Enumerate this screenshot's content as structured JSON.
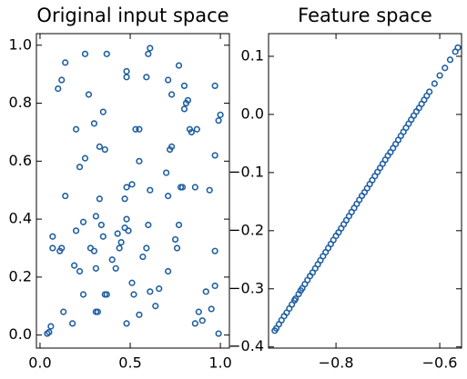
{
  "chart_data": [
    {
      "type": "scatter",
      "title": "Original input space",
      "color": "#1f5fa0",
      "x": [
        0.04,
        0.05,
        0.06,
        0.07,
        0.07,
        0.11,
        0.12,
        0.1,
        0.12,
        0.14,
        0.13,
        0.18,
        0.19,
        0.22,
        0.24,
        0.24,
        0.22,
        0.25,
        0.2,
        0.25,
        0.27,
        0.28,
        0.3,
        0.31,
        0.31,
        0.3,
        0.33,
        0.31,
        0.32,
        0.36,
        0.35,
        0.37,
        0.37,
        0.34,
        0.4,
        0.42,
        0.44,
        0.45,
        0.43,
        0.47,
        0.48,
        0.49,
        0.47,
        0.48,
        0.51,
        0.53,
        0.55,
        0.55,
        0.57,
        0.6,
        0.59,
        0.61,
        0.64,
        0.66,
        0.7,
        0.71,
        0.72,
        0.73,
        0.71,
        0.75,
        0.78,
        0.79,
        0.8,
        0.81,
        0.82,
        0.8,
        0.83,
        0.86,
        0.87,
        0.88,
        0.86,
        0.9,
        0.92,
        0.94,
        0.97,
        0.97,
        0.99,
        1.0,
        0.97,
        0.97,
        0.99,
        0.95,
        0.6,
        0.61,
        0.48,
        0.48,
        0.59,
        0.71,
        0.73,
        0.77,
        0.55,
        0.48,
        0.52,
        0.51,
        0.61,
        0.76,
        0.77,
        0.33,
        0.35,
        0.2,
        0.14,
        0.36,
        0.84
      ],
      "values": [
        0.005,
        0.01,
        0.03,
        0.34,
        0.3,
        0.29,
        0.3,
        0.85,
        0.88,
        0.94,
        0.08,
        0.04,
        0.24,
        0.22,
        0.14,
        0.39,
        0.58,
        0.61,
        0.71,
        0.97,
        0.83,
        0.3,
        0.29,
        0.41,
        0.23,
        0.73,
        0.65,
        0.08,
        0.08,
        0.64,
        0.77,
        0.97,
        0.14,
        0.38,
        0.26,
        0.23,
        0.3,
        0.32,
        0.35,
        0.37,
        0.4,
        0.36,
        0.47,
        0.51,
        0.52,
        0.71,
        0.71,
        0.6,
        0.27,
        0.38,
        0.3,
        0.15,
        0.1,
        0.16,
        0.56,
        0.48,
        0.64,
        0.65,
        0.22,
        0.33,
        0.51,
        0.51,
        0.86,
        0.8,
        0.81,
        0.78,
        0.71,
        0.51,
        0.71,
        0.08,
        0.04,
        0.05,
        0.15,
        0.5,
        0.62,
        0.86,
        0.74,
        0.76,
        0.29,
        0.17,
        0.005,
        0.09,
        0.97,
        0.99,
        0.91,
        0.89,
        0.89,
        0.88,
        0.83,
        0.93,
        0.07,
        0.04,
        0.14,
        0.18,
        0.5,
        0.3,
        0.38,
        0.47,
        0.34,
        0.36,
        0.48,
        0.14,
        0.7
      ],
      "xlim": [
        -0.02,
        1.05
      ],
      "ylim": [
        -0.045,
        1.04
      ],
      "xticks": [
        {
          "value": 0,
          "label": "0.0"
        },
        0.5,
        {
          "value": 1,
          "label": "1.0"
        }
      ],
      "yticks": [
        {
          "value": 0,
          "label": "0.0"
        },
        0.2,
        0.4,
        0.6,
        0.8,
        {
          "value": 1,
          "label": "1.0"
        }
      ]
    },
    {
      "type": "scatter",
      "title": "Feature space",
      "color": "#1f5fa0",
      "x": [
        -0.918,
        -0.915,
        -0.91,
        -0.905,
        -0.9,
        -0.895,
        -0.89,
        -0.885,
        -0.88,
        -0.878,
        -0.872,
        -0.868,
        -0.865,
        -0.86,
        -0.855,
        -0.85,
        -0.845,
        -0.84,
        -0.835,
        -0.83,
        -0.825,
        -0.82,
        -0.815,
        -0.81,
        -0.805,
        -0.8,
        -0.795,
        -0.79,
        -0.785,
        -0.78,
        -0.775,
        -0.77,
        -0.765,
        -0.76,
        -0.755,
        -0.75,
        -0.745,
        -0.74,
        -0.735,
        -0.73,
        -0.725,
        -0.72,
        -0.715,
        -0.71,
        -0.705,
        -0.7,
        -0.695,
        -0.69,
        -0.685,
        -0.68,
        -0.675,
        -0.67,
        -0.665,
        -0.66,
        -0.655,
        -0.65,
        -0.645,
        -0.64,
        -0.635,
        -0.63,
        -0.625,
        -0.62,
        -0.61,
        -0.6,
        -0.59,
        -0.58,
        -0.57,
        -0.565
      ],
      "values": [
        -0.372,
        -0.368,
        -0.361,
        -0.354,
        -0.347,
        -0.341,
        -0.334,
        -0.327,
        -0.32,
        -0.317,
        -0.309,
        -0.303,
        -0.299,
        -0.292,
        -0.285,
        -0.278,
        -0.272,
        -0.265,
        -0.258,
        -0.251,
        -0.244,
        -0.237,
        -0.23,
        -0.223,
        -0.216,
        -0.209,
        -0.203,
        -0.196,
        -0.189,
        -0.182,
        -0.175,
        -0.168,
        -0.161,
        -0.154,
        -0.147,
        -0.14,
        -0.134,
        -0.127,
        -0.12,
        -0.113,
        -0.106,
        -0.099,
        -0.092,
        -0.085,
        -0.078,
        -0.071,
        -0.065,
        -0.058,
        -0.051,
        -0.044,
        -0.037,
        -0.03,
        -0.023,
        -0.016,
        -0.009,
        -0.002,
        0.005,
        0.011,
        0.018,
        0.025,
        0.032,
        0.039,
        0.053,
        0.067,
        0.08,
        0.094,
        0.108,
        0.115
      ],
      "xlim": [
        -0.93,
        -0.558
      ],
      "ylim": [
        -0.402,
        0.139
      ],
      "xticks": [
        {
          "value": -0.8,
          "label": "−0.8"
        },
        {
          "value": -0.6,
          "label": "−0.6"
        }
      ],
      "yticks": [
        0.1,
        {
          "value": 0,
          "label": "0.0"
        },
        {
          "value": -0.1,
          "label": "−0.1"
        },
        {
          "value": -0.2,
          "label": "−0.2"
        },
        {
          "value": -0.3,
          "label": "−0.3"
        },
        {
          "value": -0.4,
          "label": "−0.4"
        }
      ]
    }
  ]
}
